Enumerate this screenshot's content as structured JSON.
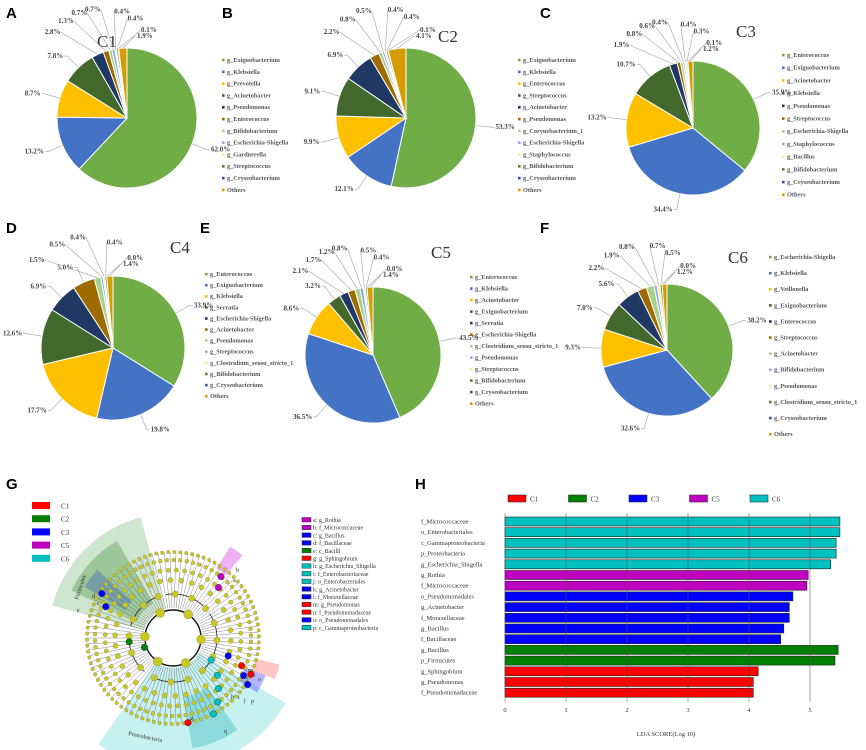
{
  "colors": {
    "pie_palette": [
      "#70ad47",
      "#4472c4",
      "#ffc000",
      "#43682b",
      "#203864",
      "#9e6b00",
      "#a9d18e",
      "#8faadc",
      "#ffe699",
      "#548235",
      "#2f5597",
      "#d49c00"
    ],
    "lda_groups": {
      "C1": "#ff0000",
      "C2": "#008000",
      "C3": "#0000ff",
      "C5": "#c000c0",
      "C6": "#00c0c0"
    }
  },
  "chart_data": [
    {
      "panel": "A",
      "type": "pie",
      "title": "C1",
      "labels": [
        "g_Exiguobacterium",
        "g_Klebsiella",
        "g_Prevotella",
        "g_Acinetobacter",
        "g_Pseudomonas",
        "g_Enterococcus",
        "g_Bifidobacterium",
        "g_Escherichia-Shigella",
        "g_Gardnerella",
        "g_Streptococcus",
        "g_Cryseobacterium",
        "Others"
      ],
      "values": [
        62.0,
        13.2,
        8.7,
        7.8,
        2.8,
        1.3,
        0.7,
        0.7,
        0.4,
        0.4,
        0.1,
        1.9
      ],
      "value_labels": [
        "62.0%",
        "13.2%",
        "8.7%",
        "7.8%",
        "2.8%",
        "1.3%",
        "0.7%",
        "0.7%",
        "0.4%",
        "0.4%",
        "0.1%",
        "1.9%"
      ]
    },
    {
      "panel": "B",
      "type": "pie",
      "title": "C2",
      "labels": [
        "g_Exiguobacterium",
        "g_Klebsiella",
        "g_Enterococcus",
        "g_Streptococcus",
        "g_Acinetobacter",
        "g_Pseudomonas",
        "g_Corynebacterium_1",
        "g_Escherichia-Shigella",
        "g_Staphylococcus",
        "g_Bifidobacterium",
        "g_Cryseobacterium",
        "Others"
      ],
      "values": [
        53.3,
        12.1,
        9.9,
        9.1,
        6.9,
        2.2,
        0.8,
        0.5,
        0.4,
        0.4,
        0.1,
        4.1
      ],
      "value_labels": [
        "53.3%",
        "12.1%",
        "9.9%",
        "9.1%",
        "6.9%",
        "2.2%",
        "0.8%",
        "0.5%",
        "0.4%",
        "0.4%",
        "0.1%",
        "4.1%"
      ]
    },
    {
      "panel": "C",
      "type": "pie",
      "title": "C3",
      "labels": [
        "g_Enterococcus",
        "g_Exiguobacterium",
        "g_Acinetobacter",
        "g_Klebsiella",
        "g_Pseudomonas",
        "g_Streptococcus",
        "g_Escherichia-Shigella",
        "g_Staphylococcus",
        "g_Bacillus",
        "g_Bifidobacterium",
        "g_Cryseobacterium",
        "Others"
      ],
      "values": [
        35.9,
        34.4,
        13.2,
        10.7,
        1.9,
        0.8,
        0.6,
        0.4,
        0.4,
        0.3,
        0.1,
        1.2
      ],
      "value_labels": [
        "35.9%",
        "34.4%",
        "13.2%",
        "10.7%",
        "1.9%",
        "0.8%",
        "0.6%",
        "0.4%",
        "0.4%",
        "0.3%",
        "0.1%",
        "1.2%"
      ]
    },
    {
      "panel": "D",
      "type": "pie",
      "title": "C4",
      "labels": [
        "g_Enterococcus",
        "g_Exiguobacterium",
        "g_Klebsiella",
        "g_Serratia",
        "g_Escherichia-Shigella",
        "g_Acinetobacter",
        "g_Pseudomonas",
        "g_Streptococcus",
        "g_Clostridium_sensu_stricto_1",
        "g_Bifidobacterium",
        "g_Cryseobacterium",
        "Others"
      ],
      "values": [
        33.9,
        19.8,
        17.7,
        12.6,
        6.9,
        5.0,
        1.5,
        0.5,
        0.4,
        0.4,
        0.0,
        1.4
      ],
      "value_labels": [
        "33.9%",
        "19.8%",
        "17.7%",
        "12.6%",
        "6.9%",
        "5.0%",
        "1.5%",
        "0.5%",
        "0.4%",
        "0.4%",
        "0.0%",
        "1.4%"
      ]
    },
    {
      "panel": "E",
      "type": "pie",
      "title": "C5",
      "labels": [
        "g_Enterococcus",
        "g_Klebsiella",
        "g_Acinetobacter",
        "g_Exiguobacterium",
        "g_Serratia",
        "g_Escherichia-Shigella",
        "g_Clostridium_sensu_stricto_1",
        "g_Pseudomonas",
        "g_Streptococcus",
        "g_Bifidobacterium",
        "g_Cryseobacterium",
        "Others"
      ],
      "values": [
        43.5,
        36.5,
        8.6,
        3.2,
        2.1,
        1.7,
        1.2,
        0.8,
        0.5,
        0.4,
        0.0,
        1.4
      ],
      "value_labels": [
        "43.5%",
        "36.5%",
        "8.6%",
        "3.2%",
        "2.1%",
        "1.7%",
        "1.2%",
        "0.8%",
        "0.5%",
        "0.4%",
        "0.0%",
        "1.4%"
      ]
    },
    {
      "panel": "F",
      "type": "pie",
      "title": "C6",
      "labels": [
        "g_Escherichia-Shigella",
        "g_Klebsiella",
        "g_Veillonella",
        "g_Exiguobacterium",
        "g_Enterococcus",
        "g_Streptococcus",
        "g_Acinetobacter",
        "g_Bifidobacterium",
        "g_Pseudomonas",
        "g_Clostridium_sensu_stricto_1",
        "g_Cryseobacterium",
        "Others"
      ],
      "values": [
        38.2,
        32.6,
        9.3,
        7.0,
        5.6,
        2.2,
        1.9,
        0.8,
        0.7,
        0.5,
        0.0,
        1.2
      ],
      "value_labels": [
        "38.2%",
        "32.6%",
        "9.3%",
        "7.0%",
        "5.6%",
        "2.2%",
        "1.9%",
        "0.8%",
        "0.7%",
        "0.5%",
        "0.0%",
        "1.2%"
      ]
    },
    {
      "panel": "G",
      "type": "cladogram",
      "group_legend": [
        "C1",
        "C2",
        "C3",
        "C5",
        "C6"
      ],
      "clade_labels": [
        {
          "key": "a",
          "name": "g_Rothia",
          "group": "C5"
        },
        {
          "key": "b",
          "name": "f_Micrococcaceae",
          "group": "C5"
        },
        {
          "key": "c",
          "name": "g_Bacillus",
          "group": "C3"
        },
        {
          "key": "d",
          "name": "f_Bacillaceae",
          "group": "C3"
        },
        {
          "key": "e",
          "name": "c_Bacilli",
          "group": "C2"
        },
        {
          "key": "g",
          "name": "g_Sphingobium",
          "group": "C1"
        },
        {
          "key": "h",
          "name": "g_Escherichia_Shigella",
          "group": "C6"
        },
        {
          "key": "i",
          "name": "f_Enterobacteriaceae",
          "group": "C6"
        },
        {
          "key": "j",
          "name": "o_Enterobacteriales",
          "group": "C6"
        },
        {
          "key": "k",
          "name": "g_Acinetobacter",
          "group": "C3"
        },
        {
          "key": "l",
          "name": "f_Moraxellaceae",
          "group": "C3"
        },
        {
          "key": "m",
          "name": "g_Pseudomonas",
          "group": "C1"
        },
        {
          "key": "n",
          "name": "f_Pseudomonadaceae",
          "group": "C1"
        },
        {
          "key": "o",
          "name": "o_Pseudomonadales",
          "group": "C3"
        },
        {
          "key": "p",
          "name": "c_Gammaproteobacteria",
          "group": "C6"
        }
      ],
      "sector_labels": [
        "Firmicutes",
        "Proteobacteria"
      ],
      "outer_letters": [
        "b",
        "a",
        "d",
        "c",
        "e",
        "m",
        "n",
        "k",
        "l",
        "o",
        "h",
        "i",
        "j",
        "p",
        "g",
        "q"
      ]
    },
    {
      "panel": "H",
      "type": "bar",
      "orientation": "horizontal",
      "title": "",
      "xlabel": "LDA SCORE(Log 10)",
      "ylabel": "",
      "xlim": [
        0,
        5.5
      ],
      "xticks": [
        0,
        1,
        2,
        3,
        4,
        5
      ],
      "legend": [
        "C1",
        "C2",
        "C3",
        "C5",
        "C6"
      ],
      "legend_position": "top",
      "categories": [
        "f_Micrococcaceae",
        "o_Enterobacteriales",
        "c_Gammaproteobacteria",
        "p_Proteobacteria",
        "g_Escherichia_Shigella",
        "g_Rothia",
        "f_Micrococcaceae",
        "o_Pseudomonadales",
        "g_Acinetobacter",
        "f_Moraxellaceae",
        "g_Bacillus",
        "f_Bacillaceae",
        "g_Bacillus",
        "p_Firmicutes",
        "g_Sphingobium",
        "g_Pseudomonas",
        "f_Pseudomonadaceae"
      ],
      "groups": [
        "C6",
        "C6",
        "C6",
        "C6",
        "C6",
        "C5",
        "C5",
        "C3",
        "C3",
        "C3",
        "C3",
        "C3",
        "C2",
        "C2",
        "C1",
        "C1",
        "C1"
      ],
      "values": [
        5.49,
        5.49,
        5.43,
        5.43,
        5.34,
        4.97,
        4.95,
        4.72,
        4.66,
        4.66,
        4.57,
        4.52,
        5.46,
        5.41,
        4.15,
        4.07,
        4.07
      ]
    }
  ]
}
